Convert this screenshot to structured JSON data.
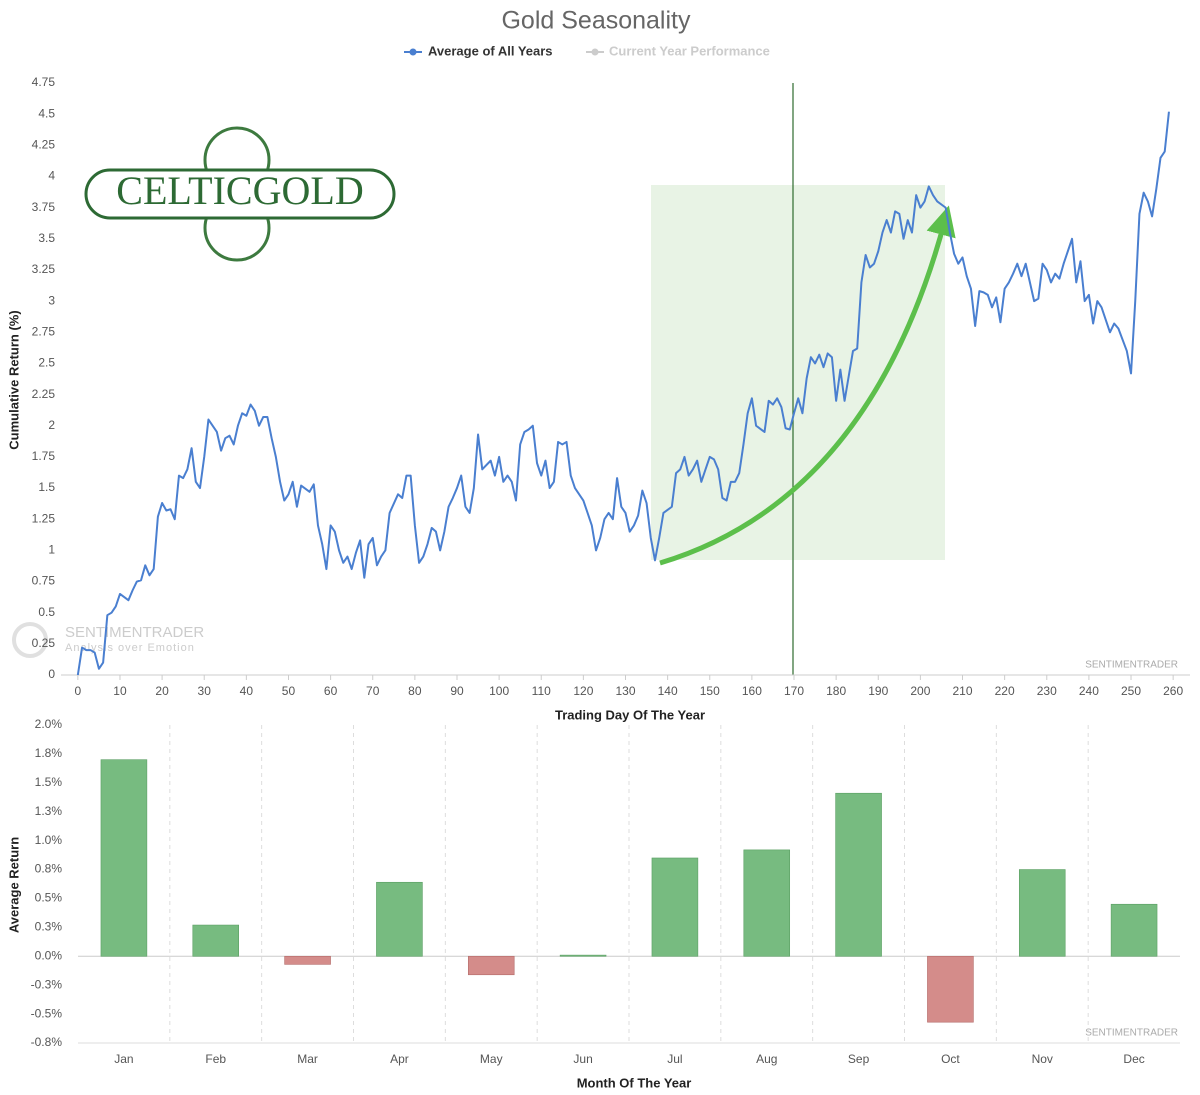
{
  "logo": {
    "text": "CELTICGOLD"
  },
  "chart_data": [
    {
      "type": "line",
      "title": "Gold Seasonality",
      "x_label": "Trading Day Of The Year",
      "y_label": "Cumulative Return (%)",
      "watermark": "SENTIMENTRADER",
      "watermark_logo": {
        "name": "SENTIMENTRADER",
        "tagline": "Analysis over Emotion"
      },
      "series": [
        {
          "name": "Average of All Years",
          "color": "#4a7fd0",
          "values": [
            0,
            0.22,
            0.2,
            0.2,
            0.18,
            0.05,
            0.1,
            0.48,
            0.5,
            0.55,
            0.65,
            0.6,
            0.68,
            0.75,
            0.76,
            0.88,
            0.8,
            0.85,
            1.27,
            1.38,
            1.32,
            1.33,
            1.25,
            1.6,
            1.58,
            1.65,
            1.82,
            1.55,
            1.5,
            1.75,
            2.05,
            1.95,
            1.8,
            1.9,
            1.92,
            1.85,
            2.0,
            2.1,
            2.08,
            2.17,
            2.12,
            2.0,
            2.07,
            2.07,
            1.9,
            1.75,
            1.55,
            1.4,
            1.45,
            1.55,
            1.35,
            1.52,
            1.47,
            1.53,
            1.2,
            1.05,
            0.85,
            1.2,
            1.15,
            1.0,
            0.9,
            0.95,
            0.85,
            0.98,
            1.08,
            0.78,
            1.05,
            1.1,
            0.88,
            0.95,
            1.0,
            1.3,
            1.45,
            1.42,
            1.6,
            1.6,
            1.2,
            0.9,
            0.95,
            1.05,
            1.18,
            1.15,
            1.0,
            1.15,
            1.35,
            1.42,
            1.5,
            1.6,
            1.35,
            1.3,
            1.5,
            1.93,
            1.65,
            1.72,
            1.6,
            1.75,
            1.55,
            1.6,
            1.55,
            1.4,
            1.85,
            1.95,
            1.97,
            2.0,
            1.7,
            1.6,
            1.72,
            1.5,
            1.55,
            1.87,
            1.85,
            1.87,
            1.6,
            1.5,
            1.4,
            1.3,
            1.2,
            1.0,
            1.1,
            1.25,
            1.3,
            1.25,
            1.58,
            1.35,
            1.3,
            1.15,
            1.2,
            1.28,
            1.48,
            1.38,
            1.1,
            0.92,
            1.1,
            1.3,
            1.35,
            1.62,
            1.65,
            1.75,
            1.6,
            1.65,
            1.72,
            1.55,
            1.65,
            1.75,
            1.73,
            1.65,
            1.42,
            1.4,
            1.55,
            1.55,
            1.62,
            1.85,
            2.1,
            2.22,
            2.0,
            1.95,
            2.2,
            2.17,
            2.22,
            2.15,
            1.98,
            1.97,
            2.1,
            2.22,
            2.1,
            2.38,
            2.55,
            2.5,
            2.57,
            2.47,
            2.58,
            2.55,
            2.2,
            2.45,
            2.2,
            2.6,
            2.62,
            3.15,
            3.37,
            3.27,
            3.3,
            3.4,
            3.55,
            3.65,
            3.55,
            3.72,
            3.7,
            3.5,
            3.65,
            3.55,
            3.85,
            3.75,
            3.8,
            3.92,
            3.85,
            3.8,
            3.75,
            3.55,
            3.38,
            3.3,
            3.35,
            3.2,
            3.1,
            2.8,
            3.08,
            3.07,
            3.05,
            2.95,
            3.03,
            2.83,
            3.1,
            3.15,
            3.22,
            3.3,
            3.2,
            3.3,
            3.0,
            3.02,
            3.3,
            3.25,
            3.15,
            3.22,
            3.18,
            3.3,
            3.4,
            3.5,
            3.15,
            3.32,
            3.0,
            3.05,
            2.82,
            3.0,
            2.95,
            2.85,
            2.75,
            2.82,
            2.78,
            2.6,
            2.42,
            3.0,
            3.7,
            3.87,
            3.8,
            3.68,
            3.9,
            4.15,
            4.2,
            4.52
          ]
        }
      ],
      "inactive_series": {
        "name": "Current Year Performance",
        "color": "#cccccc"
      },
      "x": [
        0,
        1,
        2,
        3,
        4,
        5,
        6,
        7,
        8,
        9,
        10,
        12,
        13,
        14,
        15,
        16,
        17,
        18,
        19,
        20,
        21,
        22,
        23,
        24,
        25,
        26,
        27,
        28,
        29,
        30,
        31,
        33,
        34,
        35,
        36,
        37,
        38,
        39,
        40,
        41,
        42,
        43,
        44,
        45,
        46,
        47,
        48,
        49,
        50,
        51,
        52,
        53,
        55,
        56,
        57,
        58,
        59,
        60,
        61,
        62,
        63,
        64,
        65,
        66,
        67,
        68,
        69,
        70,
        71,
        72,
        73,
        74,
        76,
        77,
        78,
        79,
        80,
        81,
        82,
        83,
        84,
        85,
        86,
        87,
        88,
        89,
        90,
        91,
        92,
        93,
        94,
        95,
        96,
        98,
        99,
        100,
        101,
        102,
        103,
        104,
        105,
        106,
        107,
        108,
        109,
        110,
        111,
        112,
        113,
        114,
        115,
        116,
        117,
        118,
        120,
        121,
        122,
        123,
        124,
        125,
        126,
        127,
        128,
        129,
        130,
        131,
        132,
        133,
        134,
        135,
        136,
        137,
        138,
        139,
        141,
        142,
        143,
        144,
        145,
        146,
        147,
        148,
        149,
        150,
        151,
        152,
        153,
        154,
        155,
        156,
        157,
        158,
        159,
        160,
        161,
        163,
        164,
        165,
        166,
        167,
        168,
        169,
        170,
        171,
        172,
        173,
        174,
        175,
        176,
        177,
        178,
        179,
        180,
        181,
        182,
        184,
        185,
        186,
        187,
        188,
        189,
        190,
        191,
        192,
        193,
        194,
        195,
        196,
        197,
        198,
        199,
        200,
        201,
        202,
        203,
        204,
        206,
        207,
        208,
        209,
        210,
        211,
        212,
        213,
        214,
        215,
        216,
        217,
        218,
        219,
        220,
        221,
        222,
        223,
        224,
        225,
        227,
        228,
        229,
        230,
        231,
        232,
        233,
        234,
        235,
        236,
        237,
        238,
        239,
        240,
        241,
        242,
        243,
        244,
        245,
        246,
        247,
        249,
        250,
        251,
        252,
        253,
        254,
        255,
        256,
        257,
        258,
        259
      ],
      "xlim": [
        -4,
        264
      ],
      "xticks": [
        0,
        10,
        20,
        30,
        40,
        50,
        60,
        70,
        80,
        90,
        100,
        110,
        120,
        130,
        140,
        150,
        160,
        170,
        180,
        190,
        200,
        210,
        220,
        230,
        240,
        250,
        260
      ],
      "ylim": [
        0,
        4.75
      ],
      "yticks": [
        0,
        0.25,
        0.5,
        0.75,
        1,
        1.25,
        1.5,
        1.75,
        2,
        2.25,
        2.5,
        2.75,
        3,
        3.25,
        3.5,
        3.75,
        4,
        4.25,
        4.5,
        4.75
      ]
    },
    {
      "type": "bar",
      "x_label": "Month Of The Year",
      "y_label": "Average Return",
      "watermark": "SENTIMENTRADER",
      "categories": [
        "Jan",
        "Feb",
        "Mar",
        "Apr",
        "May",
        "Jun",
        "Jul",
        "Aug",
        "Sep",
        "Oct",
        "Nov",
        "Dec"
      ],
      "values": [
        1.7,
        0.27,
        -0.07,
        0.64,
        -0.16,
        0.01,
        0.85,
        0.92,
        1.41,
        -0.57,
        0.75,
        0.45
      ],
      "color": "#77bb80",
      "negative_color": "#d48c8a",
      "ylim": [
        -0.75,
        2.0
      ],
      "yticks": [
        {
          "value": 2.0,
          "label": "2.0%"
        },
        {
          "value": 1.75,
          "label": "1.8%"
        },
        {
          "value": 1.5,
          "label": "1.5%"
        },
        {
          "value": 1.25,
          "label": "1.3%"
        },
        {
          "value": 1.0,
          "label": "1.0%"
        },
        {
          "value": 0.75,
          "label": "0.8%"
        },
        {
          "value": 0.5,
          "label": "0.5%"
        },
        {
          "value": 0.25,
          "label": "0.3%"
        },
        {
          "value": 0,
          "label": "0.0%"
        },
        {
          "value": -0.25,
          "label": "-0.3%"
        },
        {
          "value": -0.5,
          "label": "-0.5%"
        },
        {
          "value": -0.75,
          "label": "-0.8%"
        }
      ]
    }
  ]
}
